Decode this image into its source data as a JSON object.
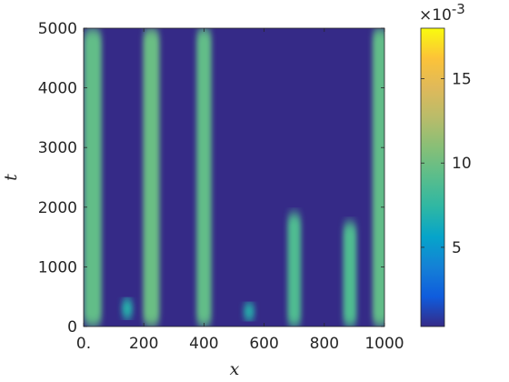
{
  "chart_data": {
    "type": "heatmap",
    "title": "",
    "xlabel": "x",
    "ylabel": "t",
    "xlim": [
      0,
      1000
    ],
    "ylim": [
      0,
      5000
    ],
    "x_ticks": [
      0,
      200,
      400,
      600,
      800,
      1000
    ],
    "x_tick_labels": [
      "0.",
      "200",
      "400",
      "600",
      "800",
      "1000"
    ],
    "y_ticks": [
      0,
      1000,
      2000,
      3000,
      4000,
      5000
    ],
    "y_tick_labels": [
      "0",
      "1000",
      "2000",
      "3000",
      "4000",
      "5000"
    ],
    "colormap": "parula",
    "colorbar": {
      "range": [
        0.0003,
        0.018
      ],
      "ticks": [
        0.005,
        0.01,
        0.015
      ],
      "tick_labels": [
        "5",
        "10",
        "15"
      ],
      "multiplier_label": "×10",
      "multiplier_exponent": "-3"
    },
    "background_value": 0.0003,
    "features": [
      {
        "kind": "band",
        "x_center": 30,
        "width": 60,
        "t_start": 0,
        "t_end": 5000,
        "value": 0.0095
      },
      {
        "kind": "band",
        "x_center": 225,
        "width": 55,
        "t_start": 0,
        "t_end": 5000,
        "value": 0.0098
      },
      {
        "kind": "band",
        "x_center": 400,
        "width": 50,
        "t_start": 0,
        "t_end": 5000,
        "value": 0.0095
      },
      {
        "kind": "band",
        "x_center": 985,
        "width": 50,
        "t_start": 0,
        "t_end": 5000,
        "value": 0.0095
      },
      {
        "kind": "band",
        "x_center": 700,
        "width": 45,
        "t_start": 0,
        "t_end": 1900,
        "value": 0.0088
      },
      {
        "kind": "band",
        "x_center": 885,
        "width": 45,
        "t_start": 0,
        "t_end": 1750,
        "value": 0.0088
      },
      {
        "kind": "blob",
        "x_center": 145,
        "t_center": 300,
        "width": 40,
        "height": 350,
        "value": 0.007
      },
      {
        "kind": "blob",
        "x_center": 550,
        "t_center": 250,
        "width": 40,
        "height": 300,
        "value": 0.007
      }
    ]
  }
}
